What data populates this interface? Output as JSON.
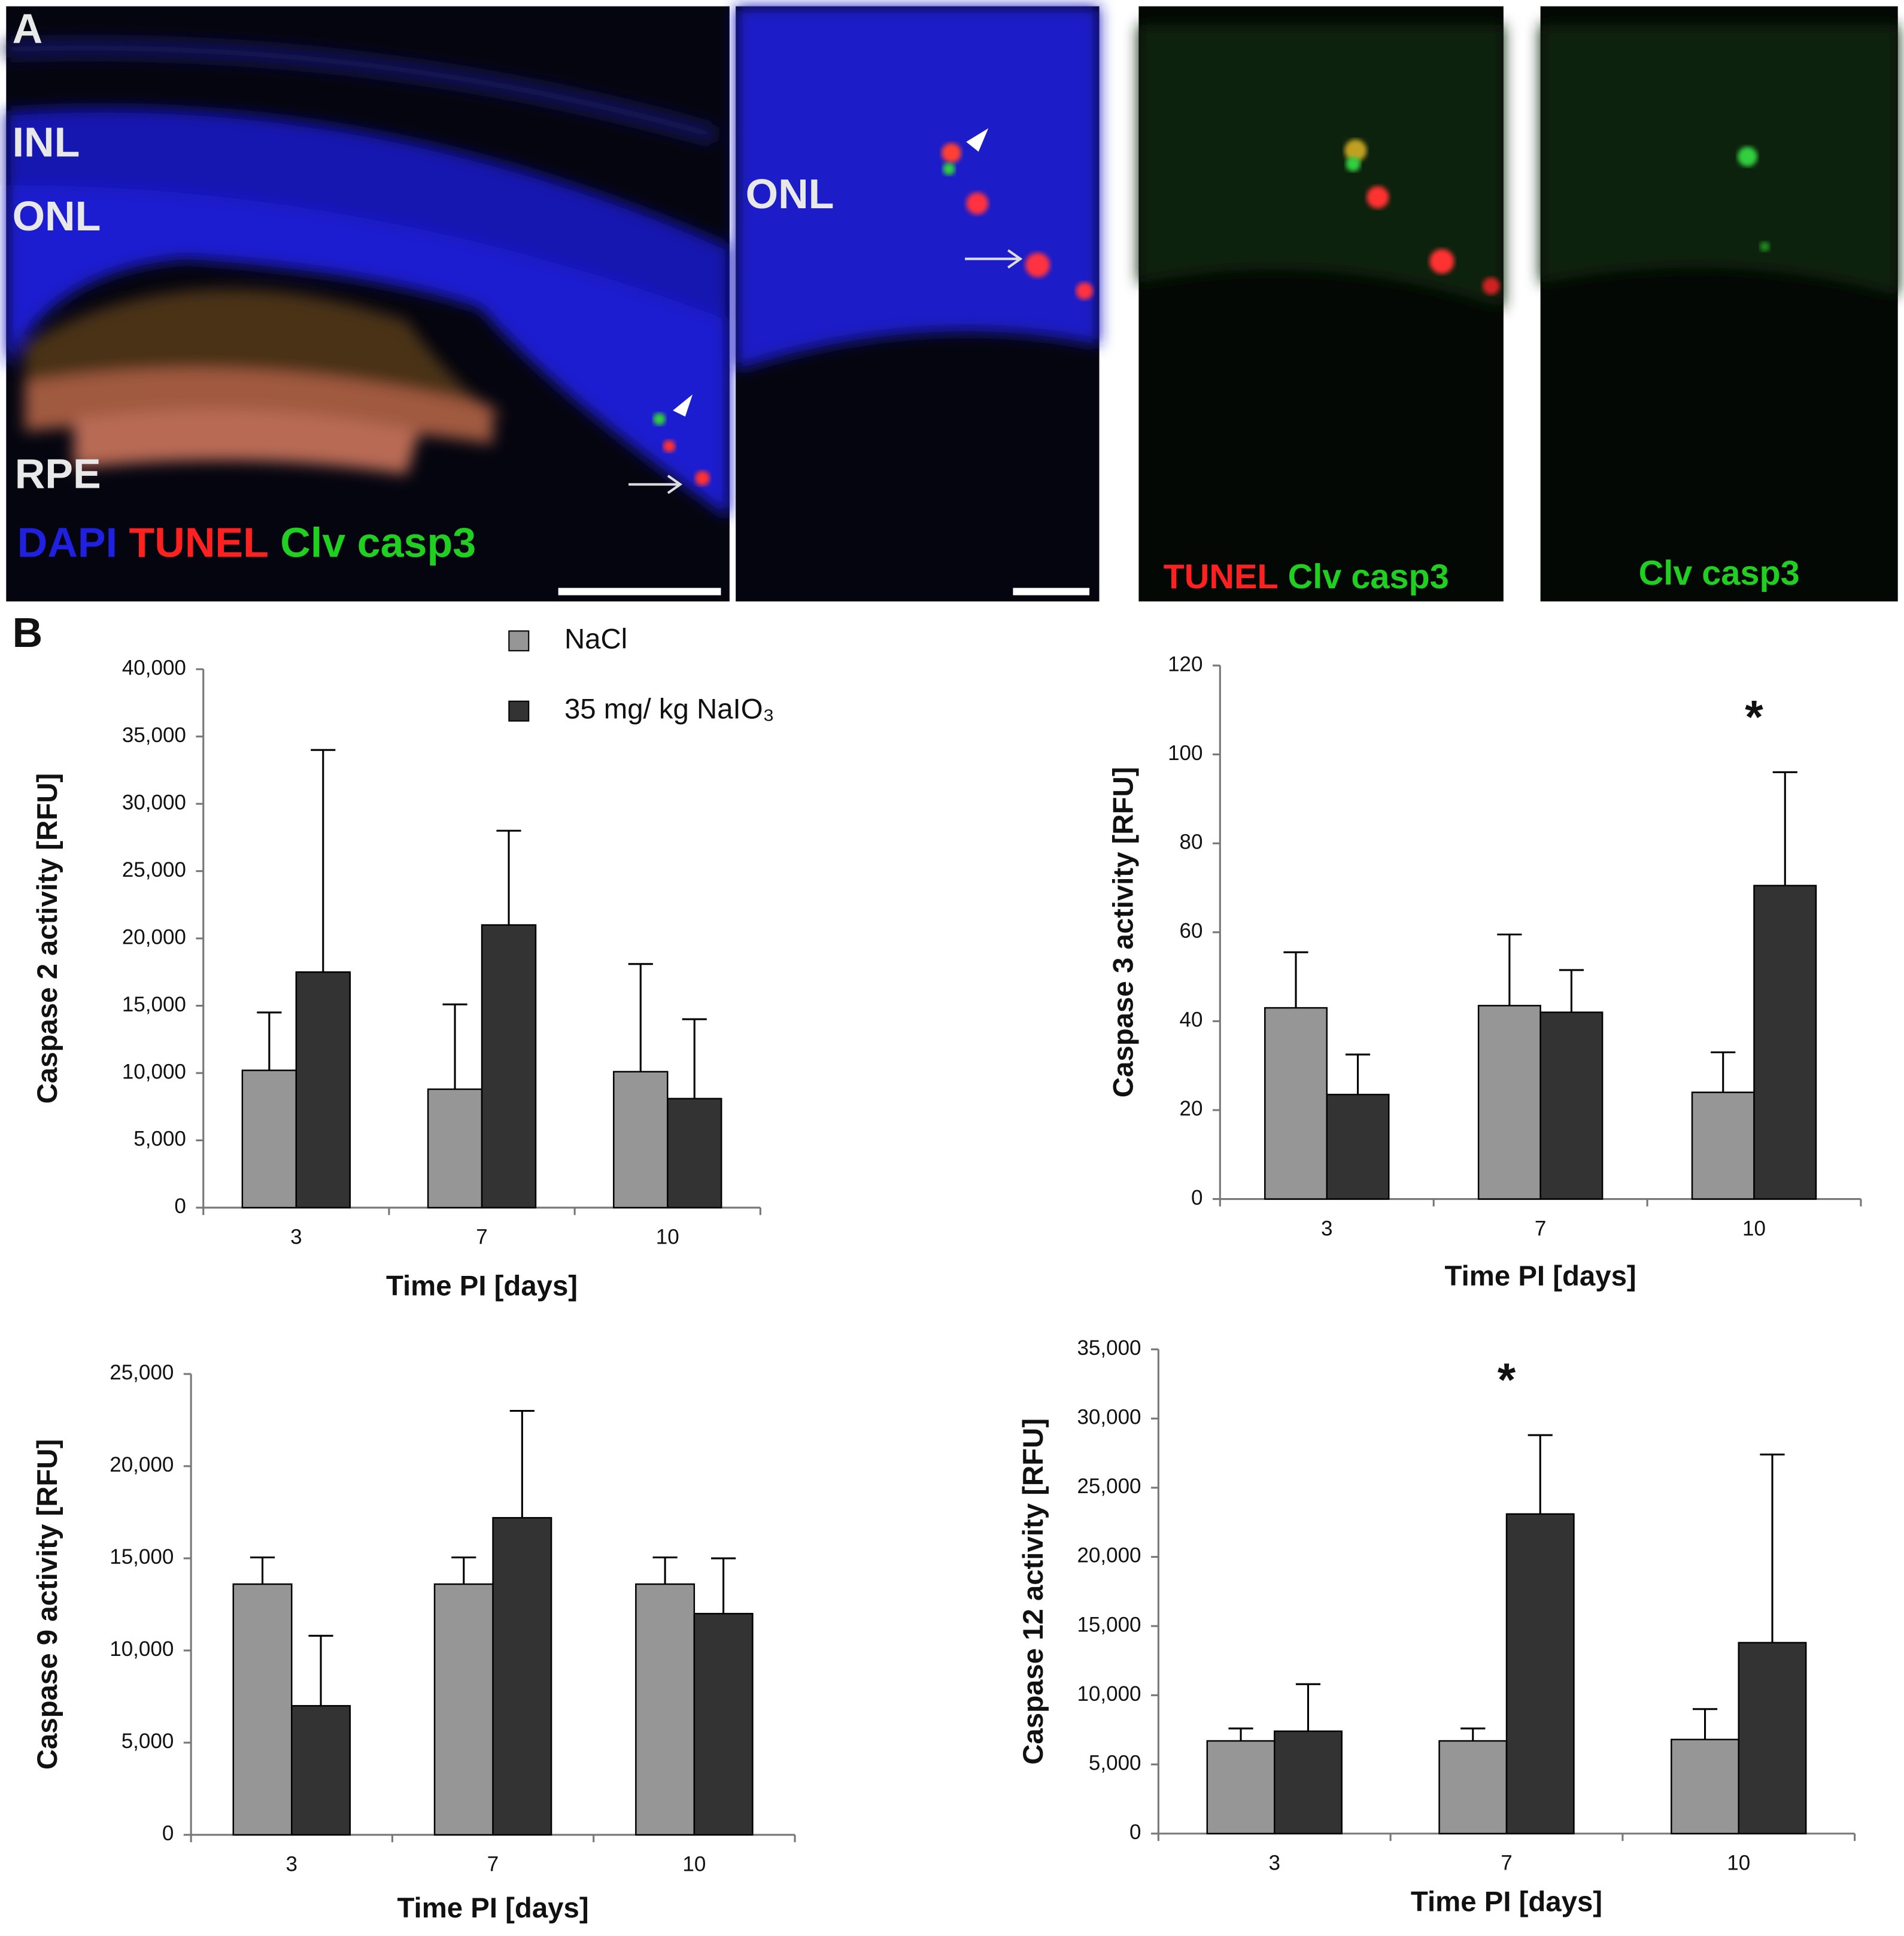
{
  "panel_labels": [
    "A",
    "B"
  ],
  "images": [
    {
      "layers": [
        "INL",
        "ONL",
        "RPE"
      ],
      "stains": [
        "DAPI",
        "TUNEL",
        "Clv casp3"
      ]
    },
    {
      "layers": [
        "ONL"
      ]
    },
    {
      "stains": [
        "TUNEL",
        "Clv casp3"
      ]
    },
    {
      "stains": [
        "Clv casp3"
      ]
    }
  ],
  "chart_data": [
    {
      "type": "bar",
      "y_label": "Caspase 2 activity [RFU]",
      "x_label": "Time PI [days]",
      "categories": [
        "3",
        "7",
        "10"
      ],
      "legend": true,
      "series": [
        {
          "name": "NaCl",
          "color": "#969696",
          "values": [
            10200,
            8800,
            10100
          ],
          "errors": [
            4300,
            6300,
            8000
          ]
        },
        {
          "name": "35 mg/ kg NaIO₃",
          "color": "#333333",
          "values": [
            17500,
            21000,
            8100
          ],
          "errors": [
            16500,
            7000,
            5900
          ]
        }
      ],
      "ylim": [
        0,
        40000
      ],
      "yticks": [
        0,
        {
          "value": 5000,
          "label": "5,000"
        },
        {
          "value": 10000,
          "label": "10,000"
        },
        {
          "value": 15000,
          "label": "15,000"
        },
        {
          "value": 20000,
          "label": "20,000"
        },
        {
          "value": 25000,
          "label": "25,000"
        },
        {
          "value": 30000,
          "label": "30,000"
        },
        {
          "value": 35000,
          "label": "35,000"
        },
        {
          "value": 40000,
          "label": "40,000"
        }
      ]
    },
    {
      "type": "bar",
      "y_label": "Caspase 3 activity [RFU]",
      "x_label": "Time PI [days]",
      "categories": [
        "3",
        "7",
        "10"
      ],
      "series": [
        {
          "color": "#969696",
          "values": [
            43,
            43.5,
            24
          ],
          "errors": [
            12.5,
            16,
            9
          ]
        },
        {
          "color": "#333333",
          "values": [
            23.5,
            42,
            70.5
          ],
          "errors": [
            9,
            9.5,
            25.5
          ]
        }
      ],
      "ylim": [
        0,
        120
      ],
      "yticks": [
        0,
        20,
        40,
        60,
        80,
        100,
        120
      ],
      "annotations": [
        {
          "text": "*",
          "x": "10"
        }
      ]
    },
    {
      "type": "bar",
      "y_label": "Caspase 9 activity [RFU]",
      "x_label": "Time PI [days]",
      "categories": [
        "3",
        "7",
        "10"
      ],
      "series": [
        {
          "color": "#969696",
          "values": [
            13600,
            13600,
            13600
          ],
          "errors": [
            1450,
            1450,
            1450
          ]
        },
        {
          "color": "#333333",
          "values": [
            7000,
            17200,
            12000
          ],
          "errors": [
            3800,
            5800,
            3000
          ]
        }
      ],
      "ylim": [
        0,
        25000
      ],
      "yticks": [
        0,
        {
          "value": 5000,
          "label": "5,000"
        },
        {
          "value": 10000,
          "label": "10,000"
        },
        {
          "value": 15000,
          "label": "15,000"
        },
        {
          "value": 20000,
          "label": "20,000"
        },
        {
          "value": 25000,
          "label": "25,000"
        }
      ]
    },
    {
      "type": "bar",
      "y_label": "Caspase 12 activity [RFU]",
      "x_label": "Time PI [days]",
      "categories": [
        "3",
        "7",
        "10"
      ],
      "series": [
        {
          "color": "#969696",
          "values": [
            6700,
            6700,
            6800
          ],
          "errors": [
            900,
            900,
            2200
          ]
        },
        {
          "color": "#333333",
          "values": [
            7400,
            23100,
            13800
          ],
          "errors": [
            3400,
            5700,
            13600
          ]
        }
      ],
      "ylim": [
        0,
        35000
      ],
      "yticks": [
        0,
        {
          "value": 5000,
          "label": "5,000"
        },
        {
          "value": 10000,
          "label": "10,000"
        },
        {
          "value": 15000,
          "label": "15,000"
        },
        {
          "value": 20000,
          "label": "20,000"
        },
        {
          "value": 25000,
          "label": "25,000"
        },
        {
          "value": 30000,
          "label": "30,000"
        },
        {
          "value": 35000,
          "label": "35,000"
        }
      ],
      "annotations": [
        {
          "text": "*",
          "x": "7"
        }
      ]
    }
  ]
}
